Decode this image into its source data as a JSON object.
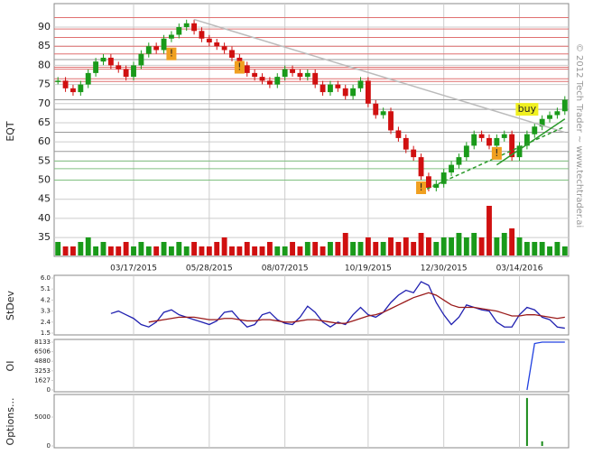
{
  "chart_data": [
    {
      "type": "candlestick",
      "ylabel": "EQT",
      "categories": [
        null,
        null,
        null,
        null,
        null,
        null,
        null,
        null,
        null,
        null,
        "03/17/2015",
        null,
        null,
        null,
        null,
        null,
        null,
        null,
        null,
        null,
        "05/28/2015",
        null,
        null,
        null,
        null,
        null,
        null,
        null,
        null,
        null,
        "08/07/2015",
        null,
        null,
        null,
        null,
        null,
        null,
        null,
        null,
        null,
        null,
        "10/19/2015",
        null,
        null,
        null,
        null,
        null,
        null,
        null,
        null,
        null,
        "12/30/2015",
        null,
        null,
        null,
        null,
        null,
        null,
        null,
        null,
        null,
        "03/14/2016",
        null,
        null,
        null,
        null,
        null,
        null
      ],
      "values": [
        76,
        74,
        73,
        75,
        78,
        81,
        82,
        80,
        79,
        77,
        80,
        83,
        85,
        84,
        87,
        88,
        90,
        91,
        89,
        87,
        86,
        85,
        84,
        82,
        80,
        78,
        77,
        76,
        75,
        77,
        79,
        78,
        77,
        78,
        75,
        73,
        75,
        74,
        72,
        74,
        76,
        70,
        67,
        68,
        63,
        61,
        58,
        56,
        51,
        48,
        49,
        52,
        54,
        56,
        59,
        62,
        61,
        59,
        61,
        62,
        56,
        59,
        62,
        64,
        66,
        67,
        68,
        71
      ],
      "volume": [
        3,
        2,
        2,
        3,
        4,
        2,
        3,
        2,
        2,
        3,
        2,
        3,
        2,
        2,
        3,
        2,
        3,
        2,
        3,
        2,
        2,
        3,
        4,
        2,
        2,
        3,
        2,
        2,
        3,
        2,
        2,
        3,
        2,
        3,
        3,
        2,
        3,
        3,
        5,
        3,
        3,
        4,
        3,
        3,
        4,
        3,
        4,
        3,
        5,
        4,
        3,
        4,
        4,
        5,
        4,
        5,
        4,
        11,
        4,
        5,
        6,
        4,
        3,
        3,
        3,
        2,
        3,
        2
      ],
      "vlim": [
        0,
        20
      ],
      "up_color": "#1a9a1a",
      "down_color": "#d01010",
      "ylim": [
        30.3,
        95.2
      ],
      "yticks": [
        35,
        40,
        45,
        50,
        55,
        60,
        65,
        70,
        75,
        80,
        85,
        90
      ],
      "grid": true,
      "levels": [
        {
          "value": 92.5,
          "color": "#e07070"
        },
        {
          "value": 89.5,
          "color": "#e07070"
        },
        {
          "value": 87.3,
          "color": "#e07070"
        },
        {
          "value": 85,
          "color": "#e07070"
        },
        {
          "value": 83,
          "color": "#e07070"
        },
        {
          "value": 81.5,
          "color": "#999999"
        },
        {
          "value": 79.5,
          "color": "#e07070"
        },
        {
          "value": 79,
          "color": "#e07070"
        },
        {
          "value": 76.5,
          "color": "#e07070"
        },
        {
          "value": 75.8,
          "color": "#e07070"
        },
        {
          "value": 71,
          "color": "#999999"
        },
        {
          "value": 68.5,
          "color": "#999999"
        },
        {
          "value": 62.5,
          "color": "#999999"
        },
        {
          "value": 57.5,
          "color": "#999999"
        },
        {
          "value": 55,
          "color": "#80c080"
        },
        {
          "value": 53,
          "color": "#80c080"
        },
        {
          "value": 50,
          "color": "#80c080"
        }
      ],
      "trendlines": [
        {
          "x": [
            18,
            67
          ],
          "y": [
            92,
            62.5
          ],
          "color": "#bbbbbb",
          "dash": false
        },
        {
          "x": [
            48,
            67
          ],
          "y": [
            47,
            64
          ],
          "color": "#2a9a2a",
          "dash": true
        },
        {
          "x": [
            58,
            67
          ],
          "y": [
            54,
            66
          ],
          "color": "#2a9a2a",
          "dash": false
        }
      ],
      "annotations": [
        {
          "text": "!",
          "x": 15,
          "y": 83,
          "color": "#f0a020"
        },
        {
          "text": "!",
          "x": 24,
          "y": 79.5,
          "color": "#f0a020"
        },
        {
          "text": "!",
          "x": 48,
          "y": 48,
          "color": "#f0a020"
        },
        {
          "text": "!",
          "x": 58,
          "y": 57,
          "color": "#f0a020"
        },
        {
          "text": "buy",
          "x": 62,
          "y": 68.5,
          "color": "#f0f020"
        }
      ],
      "watermark": "© 2012 Tech Trader ~ www.techtrader.ai"
    },
    {
      "type": "line",
      "ylabel": "StDev",
      "ylim": [
        1.5,
        6.0
      ],
      "yticks": [
        {
          "value": 1.5,
          "label": "1.5"
        },
        {
          "value": 2.4,
          "label": "2.4"
        },
        {
          "value": 3.3,
          "label": "3.3"
        },
        {
          "value": 4.2,
          "label": "4.2"
        },
        {
          "value": 5.1,
          "label": "5.1"
        },
        {
          "value": 6.0,
          "label": "6.0"
        }
      ],
      "series": [
        {
          "color": "#2020b0",
          "values": [
            null,
            null,
            null,
            null,
            null,
            null,
            null,
            3.1,
            3.3,
            3.0,
            2.7,
            2.2,
            2.0,
            2.4,
            3.2,
            3.4,
            3.0,
            2.8,
            2.6,
            2.4,
            2.2,
            2.5,
            3.2,
            3.3,
            2.6,
            2.0,
            2.2,
            3.0,
            3.2,
            2.6,
            2.3,
            2.2,
            2.8,
            3.7,
            3.2,
            2.4,
            2.0,
            2.4,
            2.2,
            3.0,
            3.6,
            3.0,
            2.8,
            3.2,
            4.0,
            4.6,
            5.0,
            4.8,
            5.7,
            5.4,
            4.0,
            3.0,
            2.2,
            2.8,
            3.8,
            3.6,
            3.4,
            3.3,
            2.4,
            2.0,
            2.0,
            3.0,
            3.6,
            3.4,
            2.8,
            2.6,
            2.0,
            1.9
          ]
        },
        {
          "color": "#9a1a1a",
          "values": [
            null,
            null,
            null,
            null,
            null,
            null,
            null,
            null,
            null,
            null,
            null,
            null,
            2.4,
            2.5,
            2.6,
            2.7,
            2.8,
            2.8,
            2.8,
            2.7,
            2.6,
            2.6,
            2.7,
            2.7,
            2.6,
            2.5,
            2.5,
            2.6,
            2.6,
            2.5,
            2.4,
            2.4,
            2.5,
            2.6,
            2.6,
            2.5,
            2.4,
            2.3,
            2.3,
            2.5,
            2.7,
            2.9,
            3.0,
            3.2,
            3.5,
            3.8,
            4.1,
            4.4,
            4.6,
            4.8,
            4.6,
            4.2,
            3.8,
            3.6,
            3.6,
            3.6,
            3.5,
            3.4,
            3.3,
            3.1,
            2.9,
            2.9,
            3.0,
            3.0,
            2.9,
            2.8,
            2.7,
            2.8
          ]
        }
      ]
    },
    {
      "type": "line",
      "ylabel": "OI",
      "ylim": [
        0,
        8133
      ],
      "yticks": [
        0,
        1627,
        3253,
        4880,
        6506,
        8133
      ],
      "series": [
        {
          "color": "#2040e0",
          "values": [
            null,
            null,
            null,
            null,
            null,
            null,
            null,
            null,
            null,
            null,
            null,
            null,
            null,
            null,
            null,
            null,
            null,
            null,
            null,
            null,
            null,
            null,
            null,
            null,
            null,
            null,
            null,
            null,
            null,
            null,
            null,
            null,
            null,
            null,
            null,
            null,
            null,
            null,
            null,
            null,
            null,
            null,
            null,
            null,
            null,
            null,
            null,
            null,
            null,
            null,
            null,
            null,
            null,
            null,
            null,
            null,
            null,
            null,
            null,
            null,
            null,
            null,
            0,
            7900,
            8133,
            8133,
            8133,
            8133
          ]
        }
      ]
    },
    {
      "type": "bar",
      "ylabel": "Options...",
      "ylim": [
        0,
        8440
      ],
      "yticks": [
        0,
        5000
      ],
      "color": "#1a8a1a",
      "values": [
        null,
        null,
        null,
        null,
        null,
        null,
        null,
        null,
        null,
        null,
        null,
        null,
        null,
        null,
        null,
        null,
        null,
        null,
        null,
        null,
        null,
        null,
        null,
        null,
        null,
        null,
        null,
        null,
        null,
        null,
        null,
        null,
        null,
        null,
        null,
        null,
        null,
        null,
        null,
        null,
        null,
        null,
        null,
        null,
        null,
        null,
        null,
        null,
        null,
        null,
        null,
        null,
        null,
        null,
        null,
        null,
        null,
        null,
        null,
        null,
        null,
        null,
        8300,
        null,
        800,
        null,
        null,
        null
      ]
    }
  ]
}
